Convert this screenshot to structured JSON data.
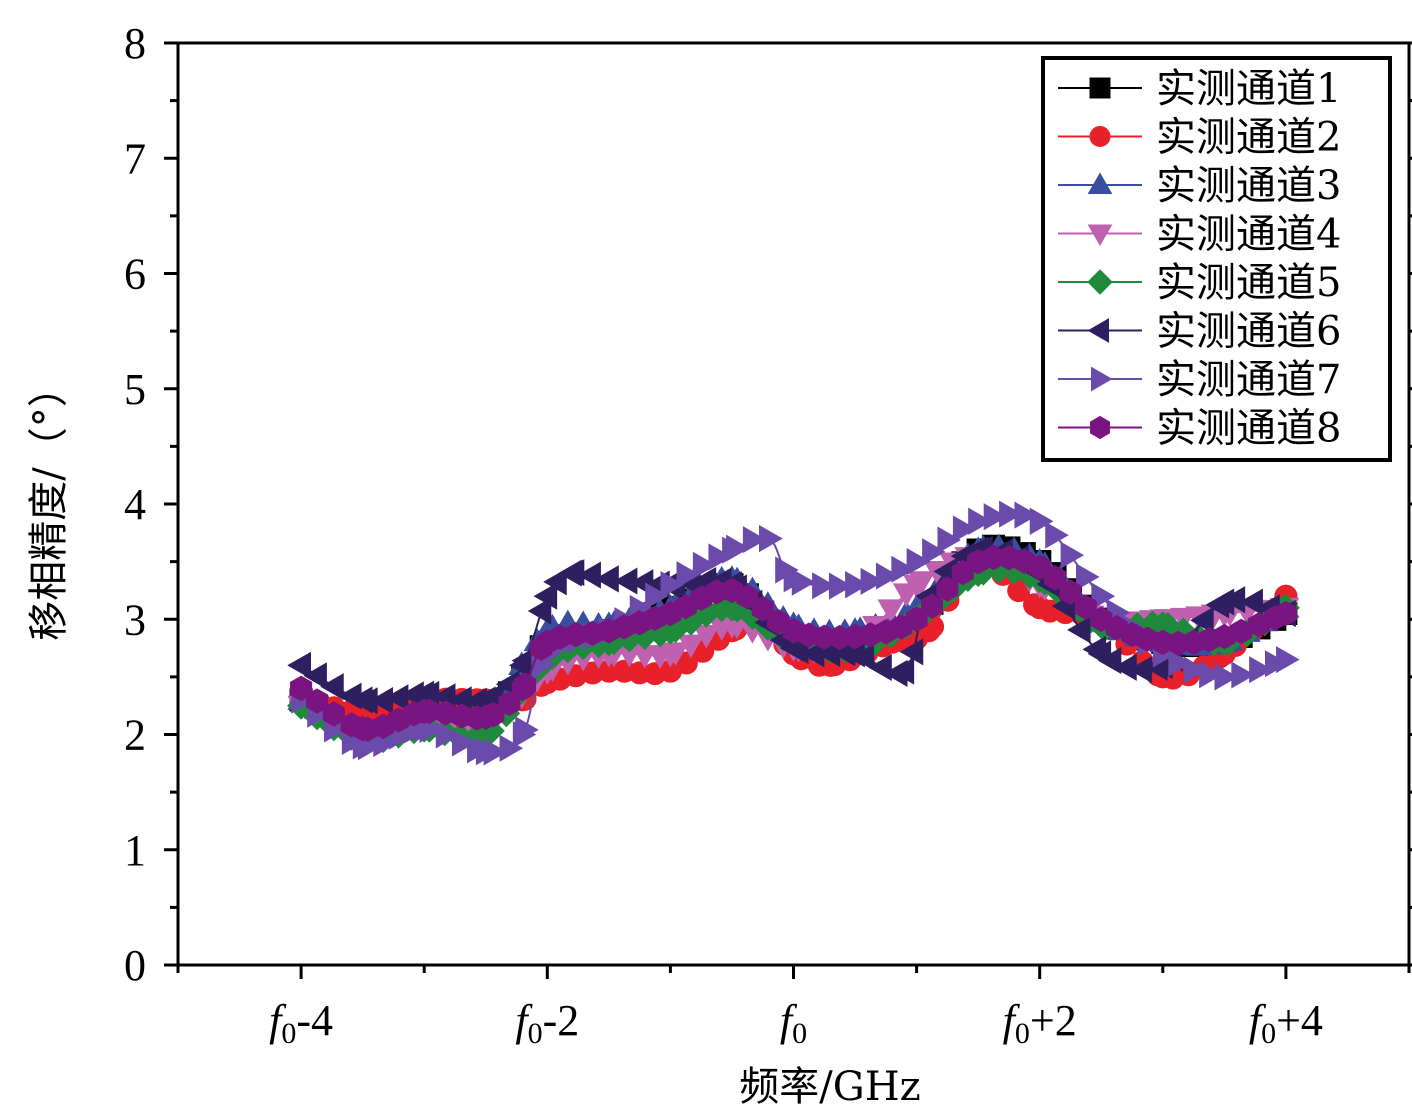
{
  "chart_data": {
    "type": "line",
    "xlabel": "频率/GHz",
    "ylabel": "移相精度/（°）",
    "xlim": [
      -5,
      5
    ],
    "ylim": [
      0,
      8
    ],
    "grid": false,
    "legend_position": "top-right",
    "x_ticks": [
      {
        "value": -4,
        "label": "-4"
      },
      {
        "value": -2,
        "label": "-2"
      },
      {
        "value": 0,
        "label": ""
      },
      {
        "value": 2,
        "label": "+2"
      },
      {
        "value": 4,
        "label": "+4"
      }
    ],
    "x_tick_prefix": "f",
    "x_tick_subscript": "0",
    "y_ticks": [
      0,
      1,
      2,
      3,
      4,
      5,
      6,
      7,
      8
    ],
    "series": [
      {
        "name": "实测通道1",
        "color": "#000000",
        "marker": "square",
        "x": [
          -4,
          -3.5,
          -3,
          -2.5,
          -2.2,
          -2,
          -1.5,
          -1,
          -0.5,
          0,
          0.5,
          1,
          1.5,
          2,
          2.5,
          3,
          3.5,
          4
        ],
        "y": [
          2.3,
          2.1,
          2.15,
          2.2,
          2.5,
          2.8,
          2.9,
          3.1,
          3.3,
          2.8,
          2.8,
          3.0,
          3.6,
          3.5,
          3.0,
          2.8,
          2.8,
          3.05
        ]
      },
      {
        "name": "实测通道2",
        "color": "#e8202a",
        "marker": "circle",
        "x": [
          -4,
          -3.5,
          -3,
          -2.5,
          -2.2,
          -2,
          -1.5,
          -1,
          -0.5,
          -0.2,
          0,
          0.3,
          0.8,
          1.1,
          1.5,
          2,
          2.5,
          3,
          3.5,
          4
        ],
        "y": [
          2.3,
          2.2,
          2.3,
          2.3,
          2.3,
          2.45,
          2.55,
          2.55,
          2.9,
          2.95,
          2.7,
          2.6,
          2.8,
          2.9,
          3.5,
          3.1,
          3.0,
          2.5,
          2.7,
          3.2
        ]
      },
      {
        "name": "实测通道3",
        "color": "#3a4ea0",
        "marker": "triangle-up",
        "x": [
          -4,
          -3.5,
          -3,
          -2.5,
          -2,
          -1.5,
          -1,
          -0.5,
          0,
          0.5,
          1,
          1.5,
          2,
          2.5,
          3,
          3.5,
          4
        ],
        "y": [
          2.3,
          2.05,
          2.1,
          2.15,
          2.9,
          2.95,
          3.1,
          3.35,
          2.95,
          2.9,
          3.1,
          3.6,
          3.5,
          3.0,
          2.8,
          2.8,
          3.1
        ]
      },
      {
        "name": "实测通道4",
        "color": "#c060b0",
        "marker": "triangle-down",
        "x": [
          -4,
          -3.5,
          -3,
          -2.5,
          -2,
          -1.5,
          -1,
          -0.5,
          0,
          0.5,
          1,
          1.5,
          2,
          2.5,
          3,
          3.5,
          4
        ],
        "y": [
          2.25,
          1.95,
          2.05,
          2.05,
          2.55,
          2.7,
          2.7,
          2.95,
          2.75,
          2.8,
          3.3,
          3.55,
          3.3,
          3.0,
          3.0,
          3.05,
          3.1
        ]
      },
      {
        "name": "实测通道5",
        "color": "#1f8a3c",
        "marker": "diamond",
        "x": [
          -4,
          -3.5,
          -3,
          -2.5,
          -2,
          -1.5,
          -1,
          -0.5,
          0,
          0.5,
          1,
          1.5,
          2,
          2.5,
          3,
          3.5,
          4
        ],
        "y": [
          2.25,
          1.95,
          2.05,
          2.0,
          2.65,
          2.8,
          2.9,
          3.1,
          2.8,
          2.75,
          3.0,
          3.4,
          3.35,
          2.95,
          2.95,
          2.8,
          3.1
        ]
      },
      {
        "name": "实测通道6",
        "color": "#2e2060",
        "marker": "triangle-left",
        "x": [
          -4,
          -3.5,
          -3,
          -2.5,
          -2.2,
          -2,
          -1.8,
          -1.5,
          -1,
          -0.5,
          0,
          0.5,
          0.9,
          1.1,
          1.5,
          2,
          2.5,
          3,
          3.5,
          4
        ],
        "y": [
          2.6,
          2.3,
          2.35,
          2.3,
          2.6,
          3.2,
          3.4,
          3.35,
          3.3,
          3.3,
          2.75,
          2.7,
          2.55,
          3.2,
          3.6,
          3.4,
          2.7,
          2.6,
          3.15,
          3.05
        ]
      },
      {
        "name": "实测通道7",
        "color": "#6a4aaa",
        "marker": "triangle-right",
        "x": [
          -4,
          -3.5,
          -3,
          -2.5,
          -2.2,
          -2,
          -1.5,
          -1,
          -0.5,
          -0.2,
          0,
          0.5,
          1,
          1.5,
          2,
          2.5,
          3,
          3.5,
          4
        ],
        "y": [
          2.3,
          1.9,
          2.05,
          1.85,
          2.0,
          2.7,
          2.9,
          3.3,
          3.6,
          3.7,
          3.35,
          3.3,
          3.5,
          3.85,
          3.85,
          3.2,
          2.7,
          2.5,
          2.65
        ]
      },
      {
        "name": "实测通道8",
        "color": "#7a1480",
        "marker": "hexagon",
        "x": [
          -4,
          -3.5,
          -3,
          -2.5,
          -2.2,
          -2,
          -1.5,
          -1,
          -0.5,
          0,
          0.5,
          1,
          1.5,
          2,
          2.5,
          3,
          3.5,
          4
        ],
        "y": [
          2.4,
          2.05,
          2.2,
          2.15,
          2.4,
          2.8,
          2.9,
          3.05,
          3.25,
          2.9,
          2.85,
          3.0,
          3.5,
          3.45,
          3.0,
          2.8,
          2.85,
          3.05
        ]
      }
    ]
  }
}
